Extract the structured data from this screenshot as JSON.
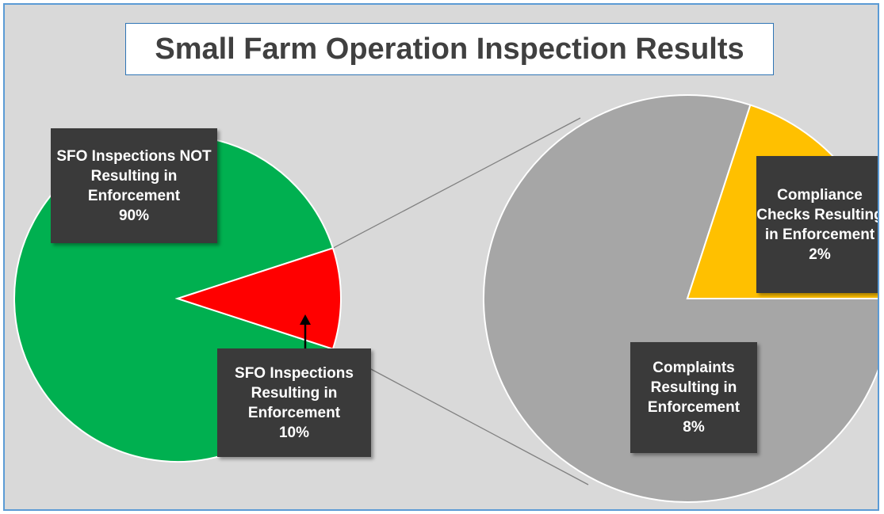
{
  "chart_data": {
    "type": "pie",
    "title": "Small Farm Operation Inspection Results",
    "categories": [
      "SFO Inspections NOT Resulting in Enforcement",
      "SFO Inspections Resulting in Enforcement"
    ],
    "values": [
      90,
      10
    ],
    "value_labels": [
      "90%",
      "10%"
    ],
    "colors": [
      "#00b050",
      "#ff0000"
    ],
    "breakout": {
      "categories": [
        "Complaints Resulting in Enforcement",
        "Compliance Checks Resulting in Enforcement"
      ],
      "values": [
        8,
        2
      ],
      "value_labels": [
        "8%",
        "2%"
      ],
      "colors": [
        "#a6a6a6",
        "#ffc000"
      ]
    }
  }
}
